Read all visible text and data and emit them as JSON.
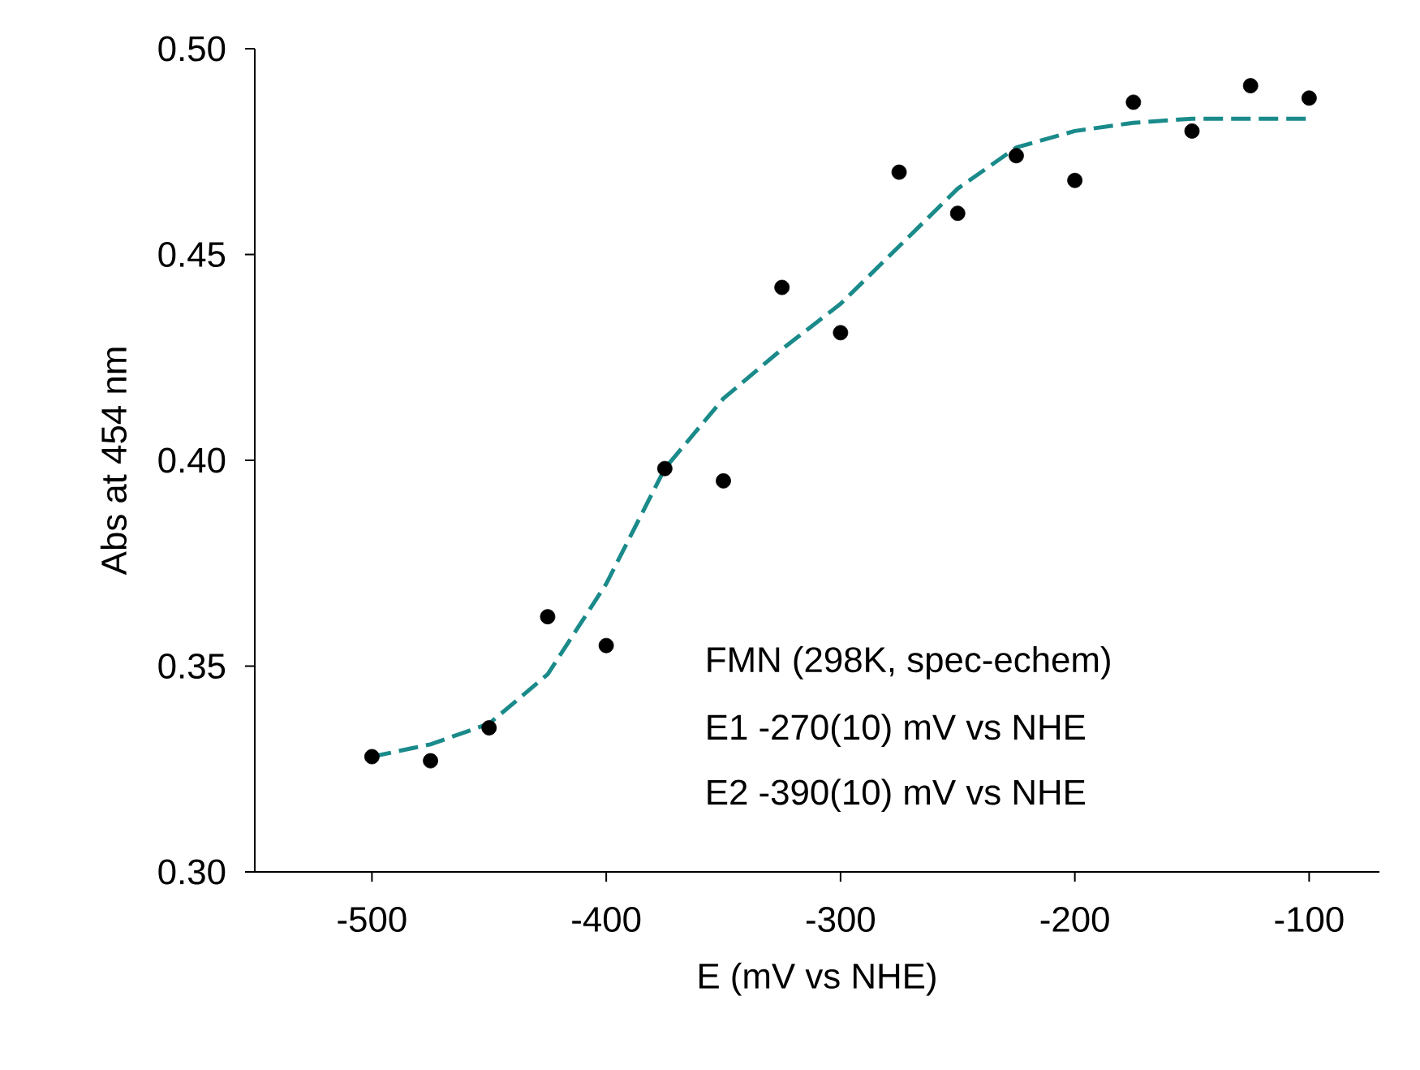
{
  "chart_data": {
    "type": "scatter",
    "xlabel": "E (mV vs NHE)",
    "ylabel": "Abs at 454 nm",
    "x": [
      -500,
      -475,
      -450,
      -425,
      -400,
      -375,
      -350,
      -325,
      -300,
      -275,
      -250,
      -225,
      -200,
      -175,
      -150,
      -125,
      -100
    ],
    "series": [
      {
        "color": "#000000",
        "marker": "circle",
        "values": [
          0.328,
          0.327,
          0.335,
          0.362,
          0.355,
          0.398,
          0.395,
          0.442,
          0.431,
          0.47,
          0.46,
          0.474,
          0.468,
          0.487,
          0.48,
          0.491,
          0.488
        ]
      },
      {
        "type": "line",
        "color": "#1a8a8a",
        "line_style": "dashed",
        "marker": "none",
        "x": [
          -500,
          -475,
          -450,
          -425,
          -400,
          -375,
          -350,
          -325,
          -300,
          -275,
          -250,
          -225,
          -200,
          -175,
          -150,
          -125,
          -100
        ],
        "values": [
          0.328,
          0.331,
          0.336,
          0.348,
          0.37,
          0.398,
          0.415,
          0.427,
          0.438,
          0.452,
          0.466,
          0.476,
          0.48,
          0.482,
          0.483,
          0.483,
          0.483
        ]
      }
    ],
    "xlim": [
      -550,
      -70
    ],
    "ylim": [
      0.3,
      0.5
    ],
    "xticks": [
      -500,
      -400,
      -300,
      -200,
      -100
    ],
    "yticks": [
      {
        "value": 0.3,
        "label": "0.30"
      },
      {
        "value": 0.35,
        "label": "0.35"
      },
      {
        "value": 0.4,
        "label": "0.40"
      },
      {
        "value": 0.45,
        "label": "0.45"
      },
      {
        "value": 0.5,
        "label": "0.50"
      }
    ],
    "annotations": [
      "FMN (298K, spec-echem)",
      "E1 -270(10) mV vs NHE",
      "E2 -390(10) mV vs NHE"
    ]
  }
}
